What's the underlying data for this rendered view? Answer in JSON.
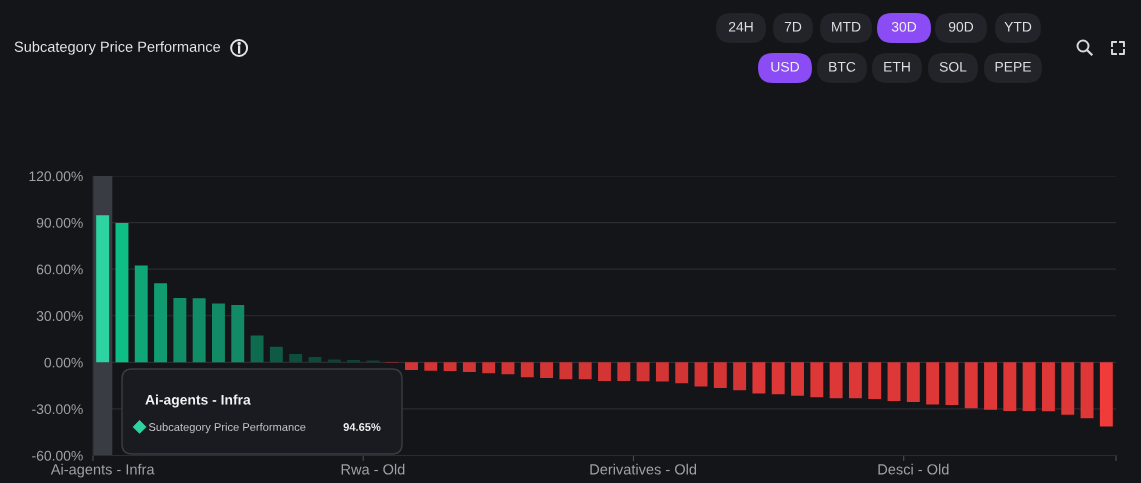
{
  "chart_data": {
    "type": "bar",
    "title": "Subcategory Price Performance",
    "categories": [
      "Ai-agents - Infra",
      null,
      null,
      null,
      null,
      null,
      null,
      null,
      null,
      null,
      null,
      null,
      null,
      null,
      "Rwa - Old",
      null,
      null,
      null,
      null,
      null,
      null,
      null,
      null,
      null,
      null,
      null,
      null,
      null,
      "Derivatives - Old",
      null,
      null,
      null,
      null,
      null,
      null,
      null,
      null,
      null,
      null,
      null,
      null,
      null,
      "Desci - Old",
      null,
      null,
      null,
      null,
      null,
      null,
      null,
      null,
      null,
      null
    ],
    "series": [
      {
        "name": "Subcategory Price Performance",
        "values": [
          94.65,
          89.7,
          62.3,
          50.9,
          41.5,
          41.3,
          37.9,
          37.0,
          17.3,
          10.0,
          5.3,
          3.4,
          1.9,
          1.5,
          1.2,
          -0.5,
          -4.9,
          -5.4,
          -5.6,
          -6.2,
          -7.1,
          -7.7,
          -9.6,
          -10.1,
          -10.9,
          -10.9,
          -12.0,
          -12.0,
          -12.2,
          -12.4,
          -13.5,
          -15.6,
          -16.5,
          -18.0,
          -20.1,
          -20.6,
          -21.6,
          -22.5,
          -23.1,
          -23.1,
          -23.6,
          -24.9,
          -25.5,
          -27.2,
          -27.4,
          -29.6,
          -30.6,
          -31.3,
          -31.3,
          -31.5,
          -33.8,
          -36.0,
          -41.3
        ],
        "colors": [
          "#2ed3a2",
          "#0dbf85",
          "#0fa775",
          "#109c6f",
          "#118d66",
          "#118d66",
          "#128a63",
          "#128a63",
          "#0f6b4e",
          "#0e5a43",
          "#0e4f3b",
          "#0d4a38",
          "#0d4535",
          "#0d4535",
          "#0d4535",
          "#8b2b2b",
          "#d33434",
          "#d33434",
          "#d33434",
          "#d33434",
          "#d33434",
          "#d33434",
          "#d33434",
          "#d33434",
          "#d33434",
          "#d33434",
          "#d33434",
          "#d33434",
          "#d33434",
          "#d33434",
          "#d33434",
          "#d33434",
          "#d33434",
          "#d33434",
          "#de3737",
          "#de3737",
          "#de3737",
          "#de3737",
          "#de3737",
          "#de3737",
          "#de3737",
          "#de3737",
          "#de3737",
          "#de3737",
          "#de3737",
          "#de3737",
          "#de3737",
          "#de3737",
          "#de3737",
          "#de3737",
          "#de3737",
          "#de3737",
          "#f03b3b"
        ]
      }
    ],
    "ylim": [
      -60,
      120
    ],
    "yticks": [
      {
        "value": -60,
        "label": "-60.00%"
      },
      {
        "value": -30,
        "label": "-30.00%"
      },
      {
        "value": 0,
        "label": "0.00%"
      },
      {
        "value": 30,
        "label": "30.00%"
      },
      {
        "value": 60,
        "label": "60.00%"
      },
      {
        "value": 90,
        "label": "90.00%"
      },
      {
        "value": 120,
        "label": "120.00%"
      }
    ],
    "grid": "y",
    "legend": "bottom left",
    "bands": [
      {
        "axis": "x",
        "from": "Ai-agents - Infra",
        "to": "Ai-agents - Infra",
        "color": "#3a3c43"
      }
    ],
    "annotations": [
      "Ai-agents - Infra",
      "94.65%",
      "24H",
      "7D",
      "MTD",
      "30D",
      "90D",
      "YTD",
      "USD",
      "BTC",
      "ETH",
      "SOL",
      "PEPE"
    ]
  }
}
